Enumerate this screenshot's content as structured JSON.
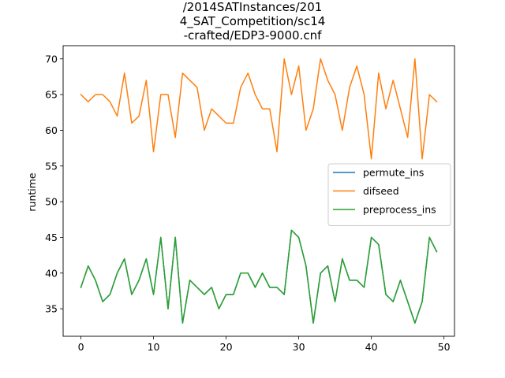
{
  "chart_data": {
    "type": "line",
    "title_lines": [
      "/2014SATInstances/201",
      "4_SAT_Competition/sc14",
      "-crafted/EDP3-9000.cnf"
    ],
    "xlabel": "",
    "ylabel": "runtime",
    "xlim": [
      -2.45,
      51.45
    ],
    "ylim": [
      31.15,
      71.85
    ],
    "xticks": [
      0,
      10,
      20,
      30,
      40,
      50
    ],
    "yticks": [
      35,
      40,
      45,
      50,
      55,
      60,
      65,
      70
    ],
    "grid": false,
    "legend_position": "center-right",
    "x": [
      0,
      1,
      2,
      3,
      4,
      5,
      6,
      7,
      8,
      9,
      10,
      11,
      12,
      13,
      14,
      15,
      16,
      17,
      18,
      19,
      20,
      21,
      22,
      23,
      24,
      25,
      26,
      27,
      28,
      29,
      30,
      31,
      32,
      33,
      34,
      35,
      36,
      37,
      38,
      39,
      40,
      41,
      42,
      43,
      44,
      45,
      46,
      47,
      48,
      49
    ],
    "series": [
      {
        "name": "permute_ins",
        "color": "#1f77b4",
        "values": [
          38,
          41,
          39,
          36,
          37,
          40,
          42,
          37,
          39,
          42,
          37,
          45,
          35,
          45,
          33,
          39,
          38,
          37,
          38,
          35,
          37,
          37,
          40,
          40,
          38,
          40,
          38,
          38,
          37,
          46,
          45,
          41,
          33,
          40,
          41,
          36,
          42,
          39,
          39,
          38,
          45,
          44,
          37,
          36,
          39,
          36,
          33,
          36,
          45,
          43
        ]
      },
      {
        "name": "difseed",
        "color": "#ff7f0e",
        "values": [
          65,
          64,
          65,
          65,
          64,
          62,
          68,
          61,
          62,
          67,
          57,
          65,
          65,
          59,
          68,
          67,
          66,
          60,
          63,
          62,
          61,
          61,
          66,
          68,
          65,
          63,
          63,
          57,
          70,
          65,
          69,
          60,
          63,
          70,
          67,
          65,
          60,
          66,
          69,
          65,
          56,
          68,
          63,
          67,
          63,
          59,
          70,
          56,
          65,
          64
        ]
      },
      {
        "name": "preprocess_ins",
        "color": "#2ca02c",
        "values": [
          38,
          41,
          39,
          36,
          37,
          40,
          42,
          37,
          39,
          42,
          37,
          45,
          35,
          45,
          33,
          39,
          38,
          37,
          38,
          35,
          37,
          37,
          40,
          40,
          38,
          40,
          38,
          38,
          37,
          46,
          45,
          41,
          33,
          40,
          41,
          36,
          42,
          39,
          39,
          38,
          45,
          44,
          37,
          36,
          39,
          36,
          33,
          36,
          45,
          43
        ]
      }
    ]
  }
}
